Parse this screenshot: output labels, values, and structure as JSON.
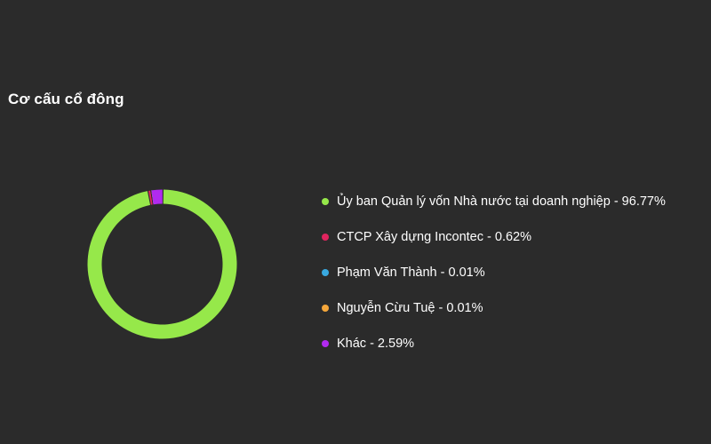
{
  "title": "Cơ cấu cổ đông",
  "chart_data": {
    "type": "pie",
    "title": "Cơ cấu cổ đông",
    "legend_position": "right",
    "slices": [
      {
        "label": "Ủy ban Quản lý vốn Nhà nước tại doanh nghiệp - 96.77%",
        "value": 96.77,
        "color": "#96e84a"
      },
      {
        "label": "CTCP Xây dựng Incontec - 0.62%",
        "value": 0.62,
        "color": "#e0245e"
      },
      {
        "label": "Phạm Văn Thành - 0.01%",
        "value": 0.01,
        "color": "#39a9e0"
      },
      {
        "label": "Nguyễn Cừu Tuệ - 0.01%",
        "value": 0.01,
        "color": "#f5a73b"
      },
      {
        "label": "Khác - 2.59%",
        "value": 2.59,
        "color": "#b12af0"
      }
    ]
  }
}
